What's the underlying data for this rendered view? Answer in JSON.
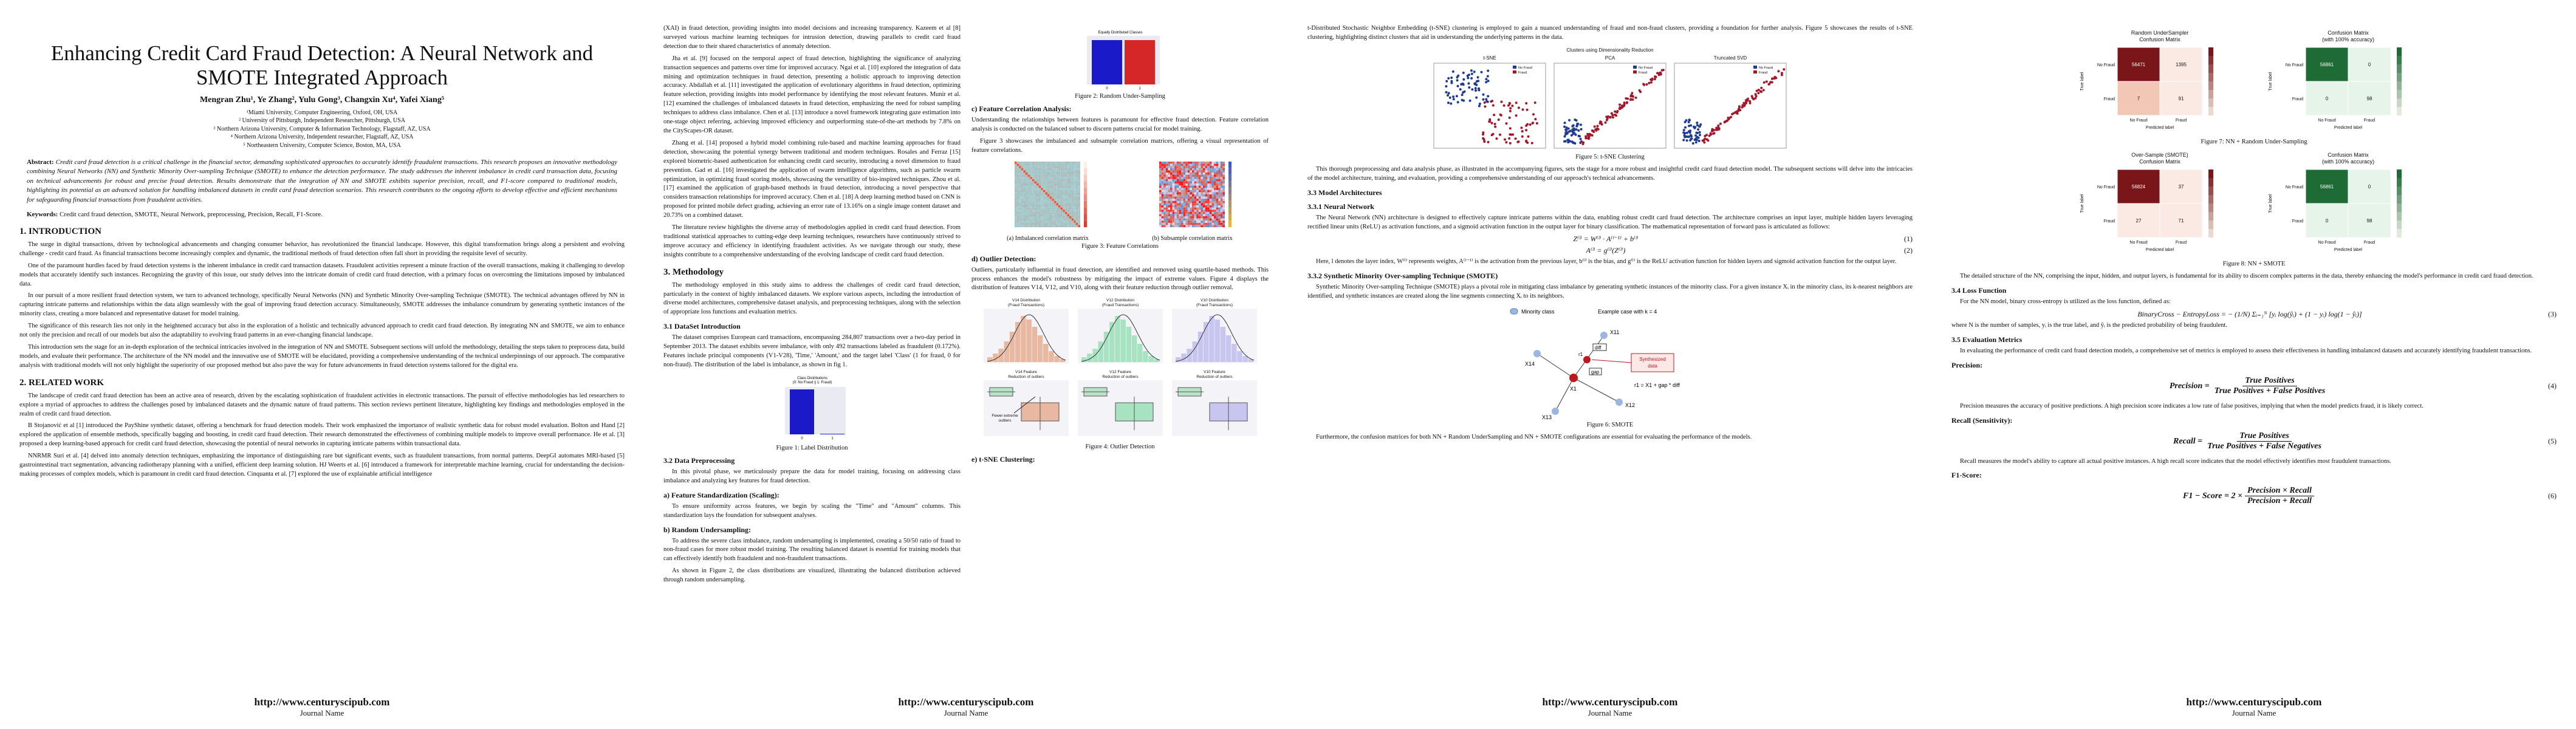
{
  "footer": {
    "url": "http://www.centuryscipub.com",
    "journal": "Journal Name"
  },
  "page1": {
    "title": "Enhancing Credit Card Fraud Detection: A Neural Network and SMOTE Integrated Approach",
    "authors": "Mengran Zhu¹, Ye Zhang², Yulu Gong³, Changxin Xu⁴, Yafei Xiang⁵",
    "affiliations": [
      "¹Miami University, Computer Engineering, Oxford, OH, USA",
      "² University of Pittsburgh, Independent Researcher, Pittsburgh, USA",
      "³ Northern Arizona University, Computer & Information Technology, Flagstaff, AZ, USA",
      "⁴ Northern Arizona University, Independent researcher, Flagstaff, AZ, USA",
      "⁵ Northeastern University, Computer Science, Boston, MA, USA"
    ],
    "abstract_label": "Abstract:",
    "abstract": "Credit card fraud detection is a critical challenge in the financial sector, demanding sophisticated approaches to accurately identify fraudulent transactions. This research proposes an innovative methodology combining Neural Networks (NN) and Synthetic Minority Over-sampling Technique (SMOTE) to enhance the detection performance. The study addresses the inherent imbalance in credit card transaction data, focusing on technical advancements for robust and precise fraud detection. Results demonstrate that the integration of NN and SMOTE exhibits superior precision, recall, and F1-score compared to traditional models, highlighting its potential as an advanced solution for handling imbalanced datasets in credit card fraud detection scenarios. This research contributes to the ongoing efforts to develop effective and efficient mechanisms for safeguarding financial transactions from fraudulent activities.",
    "keywords_label": "Keywords:",
    "keywords": "Credit card fraud detection, SMOTE, Neural Network, preprocessing, Precision, Recall, F1-Score.",
    "s1_title": "1.  INTRODUCTION",
    "s1_p1": "The surge in digital transactions, driven by technological advancements and changing consumer behavior, has revolutionized the financial landscape. However, this digital transformation brings along a persistent and evolving challenge - credit card fraud. As financial transactions become increasingly complex and dynamic, the traditional methods of fraud detection often fall short in providing the requisite level of security.",
    "s1_p2": "One of the paramount hurdles faced by fraud detection systems is the inherent imbalance in credit card transaction datasets. Fraudulent activities represent a minute fraction of the overall transactions, making it challenging to develop models that accurately identify such instances. Recognizing the gravity of this issue, our study delves into the intricate domain of credit card fraud detection, with a primary focus on overcoming the limitations imposed by imbalanced data.",
    "s1_p3": "In our pursuit of a more resilient fraud detection system, we turn to advanced technology, specifically Neural Networks (NN) and Synthetic Minority Over-sampling Technique (SMOTE). The technical advantages offered by NN in capturing intricate patterns and relationships within the data align seamlessly with the goal of improving fraud detection accuracy. Simultaneously, SMOTE addresses the imbalance conundrum by generating synthetic instances of the minority class, creating a more balanced and representative dataset for model training.",
    "s1_p4": "The significance of this research lies not only in the heightened accuracy but also in the exploration of a holistic and technically advanced approach to credit card fraud detection. By integrating NN and SMOTE, we aim to enhance not only the precision and recall of our models but also the adaptability to evolving fraud patterns in an ever-changing financial landscape.",
    "s1_p5": "This introduction sets the stage for an in-depth exploration of the technical intricacies involved in the integration of NN and SMOTE. Subsequent sections will unfold the methodology, detailing the steps taken to preprocess data, build models, and evaluate their performance. The architecture of the NN model and the innovative use of SMOTE will be elucidated, providing a comprehensive understanding of the technical underpinnings of our approach. The comparative analysis with traditional models will not only highlight the superiority of our proposed method but also pave the way for future advancements in fraud detection systems tailored for the digital era.",
    "s2_title": "2.  RELATED WORK",
    "s2_p1": "The landscape of credit card fraud detection has been an active area of research, driven by the escalating sophistication of fraudulent activities in electronic transactions. The pursuit of effective methodologies has led researchers to explore a myriad of approaches to address the challenges posed by imbalanced datasets and the dynamic nature of fraud patterns. This section reviews pertinent literature, highlighting key findings and methodologies employed in the realm of credit card fraud detection.",
    "s2_p2": "B Stojanović et al [1] introduced the PayShine synthetic dataset, offering a benchmark for fraud detection models. Their work emphasized the importance of realistic synthetic data for robust model evaluation. Bolton and Hand [2] explored the application of ensemble methods, specifically bagging and boosting, in credit card fraud detection. Their research demonstrated the effectiveness of combining multiple models to improve overall performance. He et al. [3] proposed a deep learning-based approach for credit card fraud detection, showcasing the potential of neural networks in capturing intricate patterns within transactional data.",
    "s2_p3": "NNRMR Suri et al. [4] delved into anomaly detection techniques, emphasizing the importance of distinguishing rare but significant events, such as fraudulent transactions, from normal patterns. DeepGI automates MRI-based [5] gastrointestinal tract segmentation, advancing radiotherapy planning with a unified, efficient deep learning solution. HJ Weerts et al. [6] introduced a framework for interpretable machine learning, crucial for understanding the decision-making processes of complex models, which is paramount in credit card fraud detection. Cinquanta et al. [7] explored the use of explainable artificial intelligence"
  },
  "page2": {
    "p_top1": "(XAI) in fraud detection, providing insights into model decisions and increasing transparency. Kazeem et al [8] surveyed various machine learning techniques for intrusion detection, drawing parallels to credit card fraud detection due to their shared characteristics of anomaly detection.",
    "p_top2": "Jha et al. [9] focused on the temporal aspect of fraud detection, highlighting the significance of analyzing transaction sequences and patterns over time for improved accuracy. Ngai et al. [10] explored the integration of data mining and optimization techniques in fraud detection, presenting a holistic approach to improving detection accuracy. Abdallah et al. [11] investigated the application of evolutionary algorithms in fraud detection, optimizing feature selection, providing insights into model performance by identifying the most relevant features. Munir et al. [12] examined the challenges of imbalanced datasets in fraud detection, emphasizing the need for robust sampling techniques to address class imbalance. Chen et al. [13] introduce a novel framework integrating gaze estimation into one-stage object referring, achieving improved efficiency and outperforming state-of-the-art methods by 7.8% on the CityScapes-OR dataset.",
    "p_top3": "Zhang et al. [14] proposed a hybrid model combining rule-based and machine learning approaches for fraud detection, showcasing the potential synergy between traditional and modern techniques. Rosales and Ferraz [15] explored biometric-based authentication for enhancing credit card security, introducing a novel dimension to fraud prevention. Gad et al. [16] investigated the application of swarm intelligence algorithms, such as particle swarm optimization, in optimizing fraud scoring models, showcasing the versatility of bio-inspired techniques. Zhou et al. [17] examined the application of graph-based methods in fraud detection, introducing a novel perspective that considers transaction relationships for improved accuracy. Chen et al. [18] A deep learning method based on CNN is proposed for printed mobile defect grading, achieving an error rate of 13.16% on a single image content dataset and 20.73% on a combined dataset.",
    "p_top4": "The literature review highlights the diverse array of methodologies applied in credit card fraud detection. From traditional statistical approaches to cutting-edge deep learning techniques, researchers have continuously strived to improve accuracy and efficiency in identifying fraudulent activities. As we navigate through our study, these insights contribute to a comprehensive understanding of the evolving landscape of credit card fraud detection.",
    "s3_title": "3.  Methodology",
    "s3_p1": "The methodology employed in this study aims to address the challenges of credit card fraud detection, particularly in the context of highly imbalanced datasets. We explore various aspects, including the introduction of diverse model architectures, comprehensive dataset analysis, and preprocessing techniques, along with the selection of appropriate loss functions and evaluation metrics.",
    "s31_title": "3.1 DataSet Introduction",
    "s31_p1": "The dataset comprises European card transactions, encompassing 284,807 transactions over a two-day period in September 2013. The dataset exhibits severe imbalance, with only 492 transactions labeled as fraudulent (0.172%). Features include principal components (V1-V28), 'Time,' 'Amount,' and the target label 'Class' (1 for fraud, 0 for non-fraud). The distribution of the label is imbalance, as shown in fig 1.",
    "fig1_caption": "Figure 1: Label Distribution",
    "s32_title": "3.2 Data Preprocessing",
    "s32_p1": "In this pivotal phase, we meticulously prepare the data for model training, focusing on addressing class imbalance and analyzing key features for fraud detection.",
    "s32_a_title": "a) Feature Standardization (Scaling):",
    "s32_a": "To ensure uniformity across features, we begin by scaling the \"Time\" and \"Amount\" columns. This standardization lays the foundation for subsequent analyses.",
    "s32_b_title": "b) Random Undersampling:",
    "s32_b": "To address the severe class imbalance, random undersampling is implemented, creating a 50/50 ratio of fraud to non-fraud cases for more robust model training. The resulting balanced dataset is essential for training models that can effectively identify both fraudulent and non-fraudulent transactions.",
    "s32_b2": "As shown in Figure 2, the class distributions are visualized, illustrating the balanced distribution achieved through random undersampling.",
    "fig2_caption": "Figure 2: Random Under-Sampling",
    "s32_c_title": "c) Feature Correlation Analysis:",
    "s32_c": "Understanding the relationships between features is paramount for effective fraud detection. Feature correlation analysis is conducted on the balanced subset to discern patterns crucial for model training.",
    "s32_c2": "Figure 3 showcases the imbalanced and subsample correlation matrices, offering a visual representation of feature correlations.",
    "fig3a_caption": "(a)   Imbalanced correlation matrix",
    "fig3b_caption": "(b)   Subsample correlation matrix",
    "fig3_caption": "Figure 3: Feature Correlations",
    "s32_d_title": "d) Outlier Detection:",
    "s32_d": "Outliers, particularly influential in fraud detection, are identified and removed using quartile-based methods. This process enhances the model's robustness by mitigating the impact of extreme values. Figure 4 displays the distribution of features V14, V12, and V10, along with their feature reduction through outlier removal.",
    "fig4_caption": "Figure 4: Outlier Detection",
    "s32_e_title": "e) t-SNE Clustering:",
    "chart_labels": {
      "class_dist_title": "Class Distributions\n(0: No Fraud || 1: Fraud)",
      "equally_title": "Equally Distributed Classes",
      "v14_title": "V14 Distribution\n(Fraud Transactions)",
      "v12_title": "V12 Distribution\n(Fraud Transactions)",
      "v10_title": "V10 Distribution\n(Fraud Transactions)",
      "v14_box": "V14 Feature\nReduction of outliers",
      "v12_box": "V12 Feature\nReduction of outliers",
      "v10_box": "V10 Feature\nReduction of outliers",
      "fewer_outliers": "Fewer extreme\noutliers"
    }
  },
  "page3": {
    "p_top": "t-Distributed Stochastic Neighbor Embedding (t-SNE) clustering is employed to gain a nuanced understanding of fraud and non-fraud clusters, providing a foundation for further analysis. Figure 5 showcases the results of t-SNE clustering, highlighting distinct clusters that aid in understanding the underlying patterns in the data.",
    "fig5_title": "Clusters using Dimensionality Reduction",
    "fig5_sub": [
      "t-SNE",
      "PCA",
      "Truncated SVD"
    ],
    "fig5_legend": [
      "No Fraud",
      "Fraud"
    ],
    "fig5_caption": "Figure 5: t-SNE Clustering",
    "p_after5": "This thorough preprocessing and data analysis phase, as illustrated in the accompanying figures, sets the stage for a more robust and insightful credit card fraud detection model. The subsequent sections will delve into the intricacies of the model architecture, training, and evaluation, providing a comprehensive understanding of our approach's technical advancements.",
    "s33_title": "3.3 Model Architectures",
    "s331_title": "3.3.1 Neural Network",
    "s331_p1": "The Neural Network (NN) architecture is designed to effectively capture intricate patterns within the data, enabling robust credit card fraud detection. The architecture comprises an input layer, multiple hidden layers leveraging rectified linear units (ReLU) as activation functions, and a sigmoid activation function in the output layer for binary classification. The mathematical representation of forward pass is articulated as follows:",
    "eq1": "Z⁽ˡ⁾ = W⁽ˡ⁾ · A⁽ˡ⁻¹⁾ + b⁽ˡ⁾",
    "eq1_num": "(1)",
    "eq2": "A⁽ˡ⁾ = g⁽ˡ⁾(Z⁽ˡ⁾)",
    "eq2_num": "(2)",
    "s331_p2": "Here, l denotes the layer index, W⁽ˡ⁾ represents weights, A⁽ˡ⁻¹⁾ is the activation from the previous layer, b⁽ˡ⁾ is the bias, and g⁽ˡ⁾ is the ReLU activation function for hidden layers and sigmoid activation function for the output layer.",
    "s332_title": "3.3.2 Synthetic Minority Over-sampling Technique (SMOTE)",
    "s332_p1": "Synthetic Minority Over-sampling Technique (SMOTE) plays a pivotal role in mitigating class imbalance by generating synthetic instances of the minority class. For a given instance Xᵢ in the minority class, its k-nearest neighbors are identified, and synthetic instances are created along the line segments connecting Xᵢ to its neighbors.",
    "smote_legend": "Minority class",
    "smote_example": "Example case with k = 4",
    "smote_labels": {
      "x11": "X11",
      "x14": "X14",
      "x1": "X1",
      "x13": "X13",
      "x12": "X12",
      "r1": "r1",
      "gap": "gap",
      "diff": "diff",
      "synth": "Synthesized\ndata",
      "formula": "r1 = X1 + gap * diff"
    },
    "fig6_caption": "Figure 6: SMOTE",
    "p_after6": "Furthermore, the confusion matrices for both NN + Random UnderSampling and NN + SMOTE configurations are essential for evaluating the performance of the models."
  },
  "page4": {
    "cm": [
      {
        "title": "Random UnderSampler\nConfusion Matrix",
        "values": [
          "56471",
          "1395",
          "7",
          "91"
        ],
        "rows": [
          "No Fraud",
          "Fraud"
        ],
        "cols": [
          "No Fraud",
          "Fraud"
        ],
        "xlabel": "Predicted label",
        "ylabel": "True label"
      },
      {
        "title": "Confusion Matrix\n(with 100% accuracy)",
        "values": [
          "56861",
          "0",
          "0",
          "98"
        ],
        "rows": [
          "No Fraud",
          "Fraud"
        ],
        "cols": [
          "No Fraud",
          "Fraud"
        ],
        "xlabel": "Predicted label",
        "ylabel": "True label"
      },
      {
        "title": "Over-Sample (SMOTE)\nConfusion Matrix",
        "values": [
          "56824",
          "37",
          "27",
          "71"
        ],
        "rows": [
          "No Fraud",
          "Fraud"
        ],
        "cols": [
          "No Fraud",
          "Fraud"
        ],
        "xlabel": "Predicted label",
        "ylabel": "True label"
      },
      {
        "title": "Confusion Matrix\n(with 100% accuracy)",
        "values": [
          "56861",
          "0",
          "0",
          "98"
        ],
        "rows": [
          "No Fraud",
          "Fraud"
        ],
        "cols": [
          "No Fraud",
          "Fraud"
        ],
        "xlabel": "Predicted label",
        "ylabel": "True label"
      }
    ],
    "fig7_caption": "Figure 7: NN + Random Under-Sampling",
    "fig8_caption": "Figure 8: NN + SMOTE",
    "p_after8": "The detailed structure of the NN, comprising the input, hidden, and output layers, is fundamental for its ability to discern complex patterns in the data, thereby enhancing the model's performance in credit card fraud detection.",
    "s34_title": "3.4 Loss Function",
    "s34_p1": "For the NN model, binary cross-entropy is utilized as the loss function, defined as:",
    "eq3": "BinaryCross − EntropyLoss = − (1/N) Σᵢ₌₁ᴺ [yᵢ log(ŷᵢ) + (1 − yᵢ) log(1 − ŷᵢ)]",
    "eq3_num": "(3)",
    "s34_p2": "where N is the number of samples, yᵢ is the true label, and ŷᵢ is the predicted probability of being fraudulent.",
    "s35_title": "3.5 Evaluation Metrics",
    "s35_p1": "In evaluating the performance of credit card fraud detection models, a comprehensive set of metrics is employed to assess their effectiveness in handling imbalanced datasets and accurately identifying fraudulent transactions.",
    "precision_title": "Precision:",
    "prec_lhs": "Precision =",
    "prec_num": "True Positives",
    "prec_den": "True Positives + False Positives",
    "eq4_num": "(4)",
    "prec_p": "Precision measures the accuracy of positive predictions. A high precision score indicates a low rate of false positives, implying that when the model predicts fraud, it is likely correct.",
    "recall_title": "Recall (Sensitivity):",
    "rec_lhs": "Recall =",
    "rec_num": "True Positives",
    "rec_den": "True Positives + False Negatives",
    "eq5_num": "(5)",
    "rec_p": "Recall measures the model's ability to capture all actual positive instances. A high recall score indicates that the model effectively identifies most fraudulent transactions.",
    "f1_title": "F1-Score:",
    "f1_lhs": "F1 − Score = 2 ×",
    "f1_num": "Precision × Recall",
    "f1_den": "Precision + Recall",
    "eq6_num": "(6)"
  }
}
